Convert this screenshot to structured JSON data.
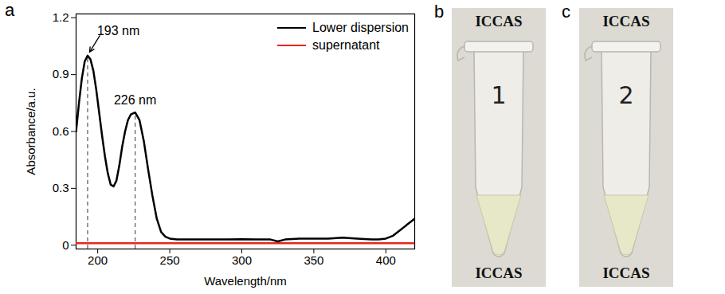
{
  "chart_data": {
    "type": "line",
    "panel_label": "a",
    "x_label": "Wavelength/nm",
    "y_label": "Absorbance/a.u.",
    "xlim": [
      185,
      420
    ],
    "xticks": [
      200,
      250,
      300,
      350,
      400
    ],
    "ylim": [
      -0.02,
      1.22
    ],
    "yticks": [
      0,
      0.3,
      0.6,
      0.9,
      1.2
    ],
    "legend": "upper right",
    "series": [
      {
        "name": "Lower dispersion",
        "color": "#000000",
        "x": [
          185,
          187,
          189,
          191,
          193,
          195,
          197,
          199,
          201,
          203,
          205,
          207,
          209,
          211,
          213,
          215,
          217,
          219,
          221,
          223,
          226,
          229,
          232,
          235,
          238,
          241,
          244,
          247,
          250,
          255,
          260,
          270,
          280,
          290,
          300,
          310,
          320,
          325,
          330,
          340,
          350,
          360,
          370,
          380,
          390,
          395,
          400,
          405,
          410,
          415,
          420
        ],
        "values": [
          0.6,
          0.75,
          0.88,
          0.97,
          1.0,
          0.98,
          0.92,
          0.82,
          0.7,
          0.58,
          0.47,
          0.38,
          0.32,
          0.31,
          0.34,
          0.42,
          0.52,
          0.6,
          0.66,
          0.69,
          0.7,
          0.66,
          0.55,
          0.4,
          0.26,
          0.14,
          0.07,
          0.045,
          0.035,
          0.03,
          0.03,
          0.03,
          0.03,
          0.03,
          0.032,
          0.03,
          0.03,
          0.02,
          0.03,
          0.035,
          0.035,
          0.035,
          0.04,
          0.035,
          0.03,
          0.03,
          0.035,
          0.05,
          0.08,
          0.11,
          0.14
        ]
      },
      {
        "name": "supernatant",
        "color": "#e8261e",
        "x": [
          185,
          420
        ],
        "values": [
          0.01,
          0.01
        ]
      }
    ],
    "annotations": [
      {
        "text": "193 nm",
        "x": 193,
        "y": 1.0,
        "arrow": true
      },
      {
        "text": "226 nm",
        "x": 226,
        "y": 0.7,
        "arrow": false
      }
    ]
  },
  "photos": [
    {
      "panel_label": "b",
      "background_text": "ICCAS",
      "tube_label": "1"
    },
    {
      "panel_label": "c",
      "background_text": "ICCAS",
      "tube_label": "2"
    }
  ]
}
